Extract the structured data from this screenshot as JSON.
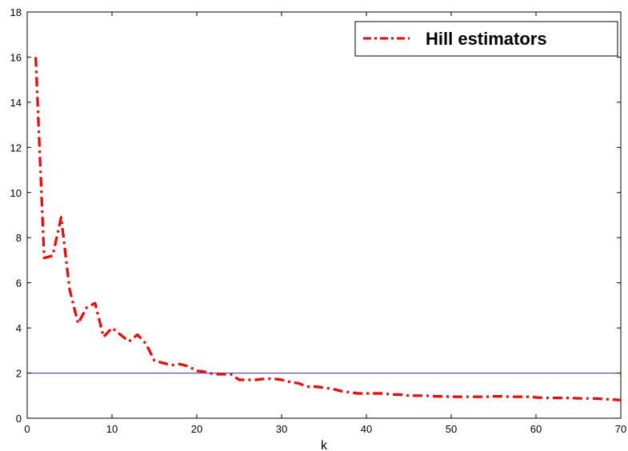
{
  "chart_data": {
    "type": "line",
    "title": "",
    "xlabel": "k",
    "ylabel": "",
    "xlim": [
      0,
      70
    ],
    "ylim": [
      0,
      18
    ],
    "xticks": [
      0,
      10,
      20,
      30,
      40,
      50,
      60,
      70
    ],
    "yticks": [
      0,
      2,
      4,
      6,
      8,
      10,
      12,
      14,
      16,
      18
    ],
    "grid": false,
    "legend_position": "top-right",
    "series": [
      {
        "name": "Hill estimators",
        "color": "#ff0000",
        "style": "dash-dot",
        "x": [
          1,
          2,
          3,
          4,
          5,
          6,
          7,
          8,
          9,
          10,
          11,
          12,
          13,
          14,
          15,
          16,
          17,
          18,
          19,
          20,
          21,
          22,
          23,
          24,
          25,
          26,
          27,
          28,
          29,
          30,
          31,
          32,
          33,
          34,
          35,
          36,
          37,
          38,
          39,
          40,
          41,
          42,
          43,
          44,
          45,
          46,
          47,
          48,
          49,
          50,
          51,
          52,
          53,
          54,
          55,
          56,
          57,
          58,
          59,
          60,
          61,
          62,
          63,
          64,
          65,
          66,
          67,
          68,
          69,
          70
        ],
        "y": [
          16.0,
          7.1,
          7.2,
          8.9,
          5.7,
          4.2,
          4.9,
          5.1,
          3.6,
          4.0,
          3.7,
          3.4,
          3.7,
          3.3,
          2.55,
          2.45,
          2.35,
          2.4,
          2.3,
          2.1,
          2.05,
          1.95,
          1.95,
          1.95,
          1.7,
          1.7,
          1.7,
          1.75,
          1.75,
          1.7,
          1.6,
          1.55,
          1.4,
          1.4,
          1.35,
          1.3,
          1.2,
          1.15,
          1.1,
          1.1,
          1.1,
          1.1,
          1.05,
          1.05,
          1.0,
          1.0,
          1.0,
          0.97,
          0.97,
          0.95,
          0.95,
          0.95,
          0.95,
          0.95,
          0.97,
          0.97,
          0.95,
          0.95,
          0.95,
          0.92,
          0.9,
          0.9,
          0.9,
          0.9,
          0.88,
          0.88,
          0.87,
          0.85,
          0.83,
          0.8
        ]
      }
    ],
    "reference_lines": [
      {
        "y": 2,
        "color": "#4444ee"
      }
    ]
  }
}
